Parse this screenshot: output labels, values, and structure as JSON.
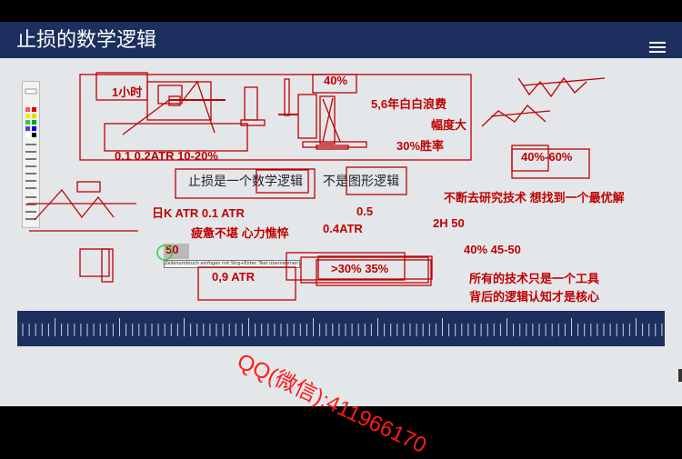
{
  "slide": {
    "title": "止损的数学逻辑",
    "text_main": "止损是一个数学逻辑",
    "text_not": "不是图形逻辑"
  },
  "annotations": {
    "one_hour": "1小时",
    "forty": "40%",
    "years": "5,6年白白浪费",
    "amplitude": "幅度大",
    "win_rate": "30%胜率",
    "atr_range": "0.1 0.2ATR   10-20%",
    "range_40_60": "40%-60%",
    "daily_atr": "日K ATR  0.1   ATR",
    "v05": "0.5",
    "v04atr": "0.4ATR",
    "research": "不断去研究技术 想找到一个最优解",
    "h2": "2H  50",
    "p4045": "40% 45-50",
    "tired": "疲惫不堪 心力憔悴",
    "fifty": "50",
    "atr09": "0,9   ATR",
    "pct": ">30%   35%",
    "tool1": "所有的技术只是一个工具",
    "tool2": "背后的逻辑认知才是核心"
  },
  "tooltip": "Zeilenumbruch einfügen mit Strg+Enter. Text übernehmen mit Enter, abbrechen mit ESC",
  "watermark": "QQ(微信):411966170",
  "colors": {
    "title_bar": "#1d2f5e",
    "annotation": "#c00000",
    "background": "#e3e7ea"
  }
}
